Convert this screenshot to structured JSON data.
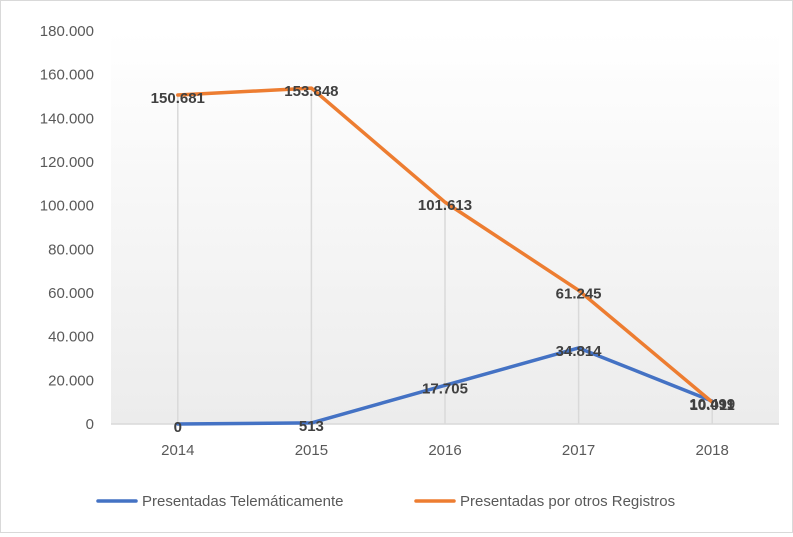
{
  "chart_data": {
    "type": "line",
    "title": "",
    "xlabel": "",
    "ylabel": "",
    "categories": [
      "2014",
      "2015",
      "2016",
      "2017",
      "2018"
    ],
    "y_ticks": [
      "0",
      "20.000",
      "40.000",
      "60.000",
      "80.000",
      "100.000",
      "120.000",
      "140.000",
      "160.000",
      "180.000"
    ],
    "ylim": [
      0,
      180000
    ],
    "grid": "vertical drop lines at each category",
    "legend_position": "bottom",
    "series": [
      {
        "name": "Presentadas Telemáticamente",
        "color": "#4472c4",
        "values": [
          0,
          513,
          17705,
          34814,
          10499
        ],
        "labels": [
          "0",
          "513",
          "17.705",
          "34.814",
          "10.499"
        ]
      },
      {
        "name": "Presentadas por otros Registros",
        "color": "#ed7d31",
        "values": [
          150681,
          153848,
          101613,
          61245,
          10011
        ],
        "labels": [
          "150.681",
          "153.848",
          "101.613",
          "61.245",
          "10.011"
        ]
      }
    ]
  }
}
